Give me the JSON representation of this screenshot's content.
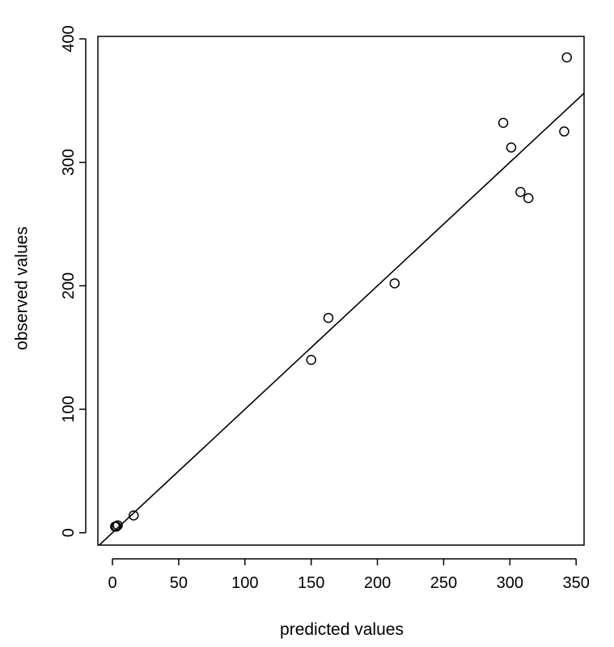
{
  "chart_data": {
    "type": "scatter",
    "title": "",
    "xlabel": "predicted values",
    "ylabel": "observed values",
    "xlim": [
      -11,
      356
    ],
    "ylim": [
      -10,
      402
    ],
    "x_ticks": [
      0,
      50,
      100,
      150,
      200,
      250,
      300,
      350
    ],
    "y_ticks": [
      0,
      100,
      200,
      300,
      400
    ],
    "grid": false,
    "legend": "none",
    "marker": "open-circle",
    "reference_line": {
      "intercept": 0,
      "slope": 1
    },
    "points": [
      {
        "x": 2,
        "y": 5
      },
      {
        "x": 3,
        "y": 5
      },
      {
        "x": 4,
        "y": 6
      },
      {
        "x": 16,
        "y": 14
      },
      {
        "x": 150,
        "y": 140
      },
      {
        "x": 163,
        "y": 174
      },
      {
        "x": 213,
        "y": 202
      },
      {
        "x": 295,
        "y": 332
      },
      {
        "x": 301,
        "y": 312
      },
      {
        "x": 308,
        "y": 276
      },
      {
        "x": 314,
        "y": 271
      },
      {
        "x": 341,
        "y": 325
      },
      {
        "x": 343,
        "y": 385
      }
    ]
  }
}
